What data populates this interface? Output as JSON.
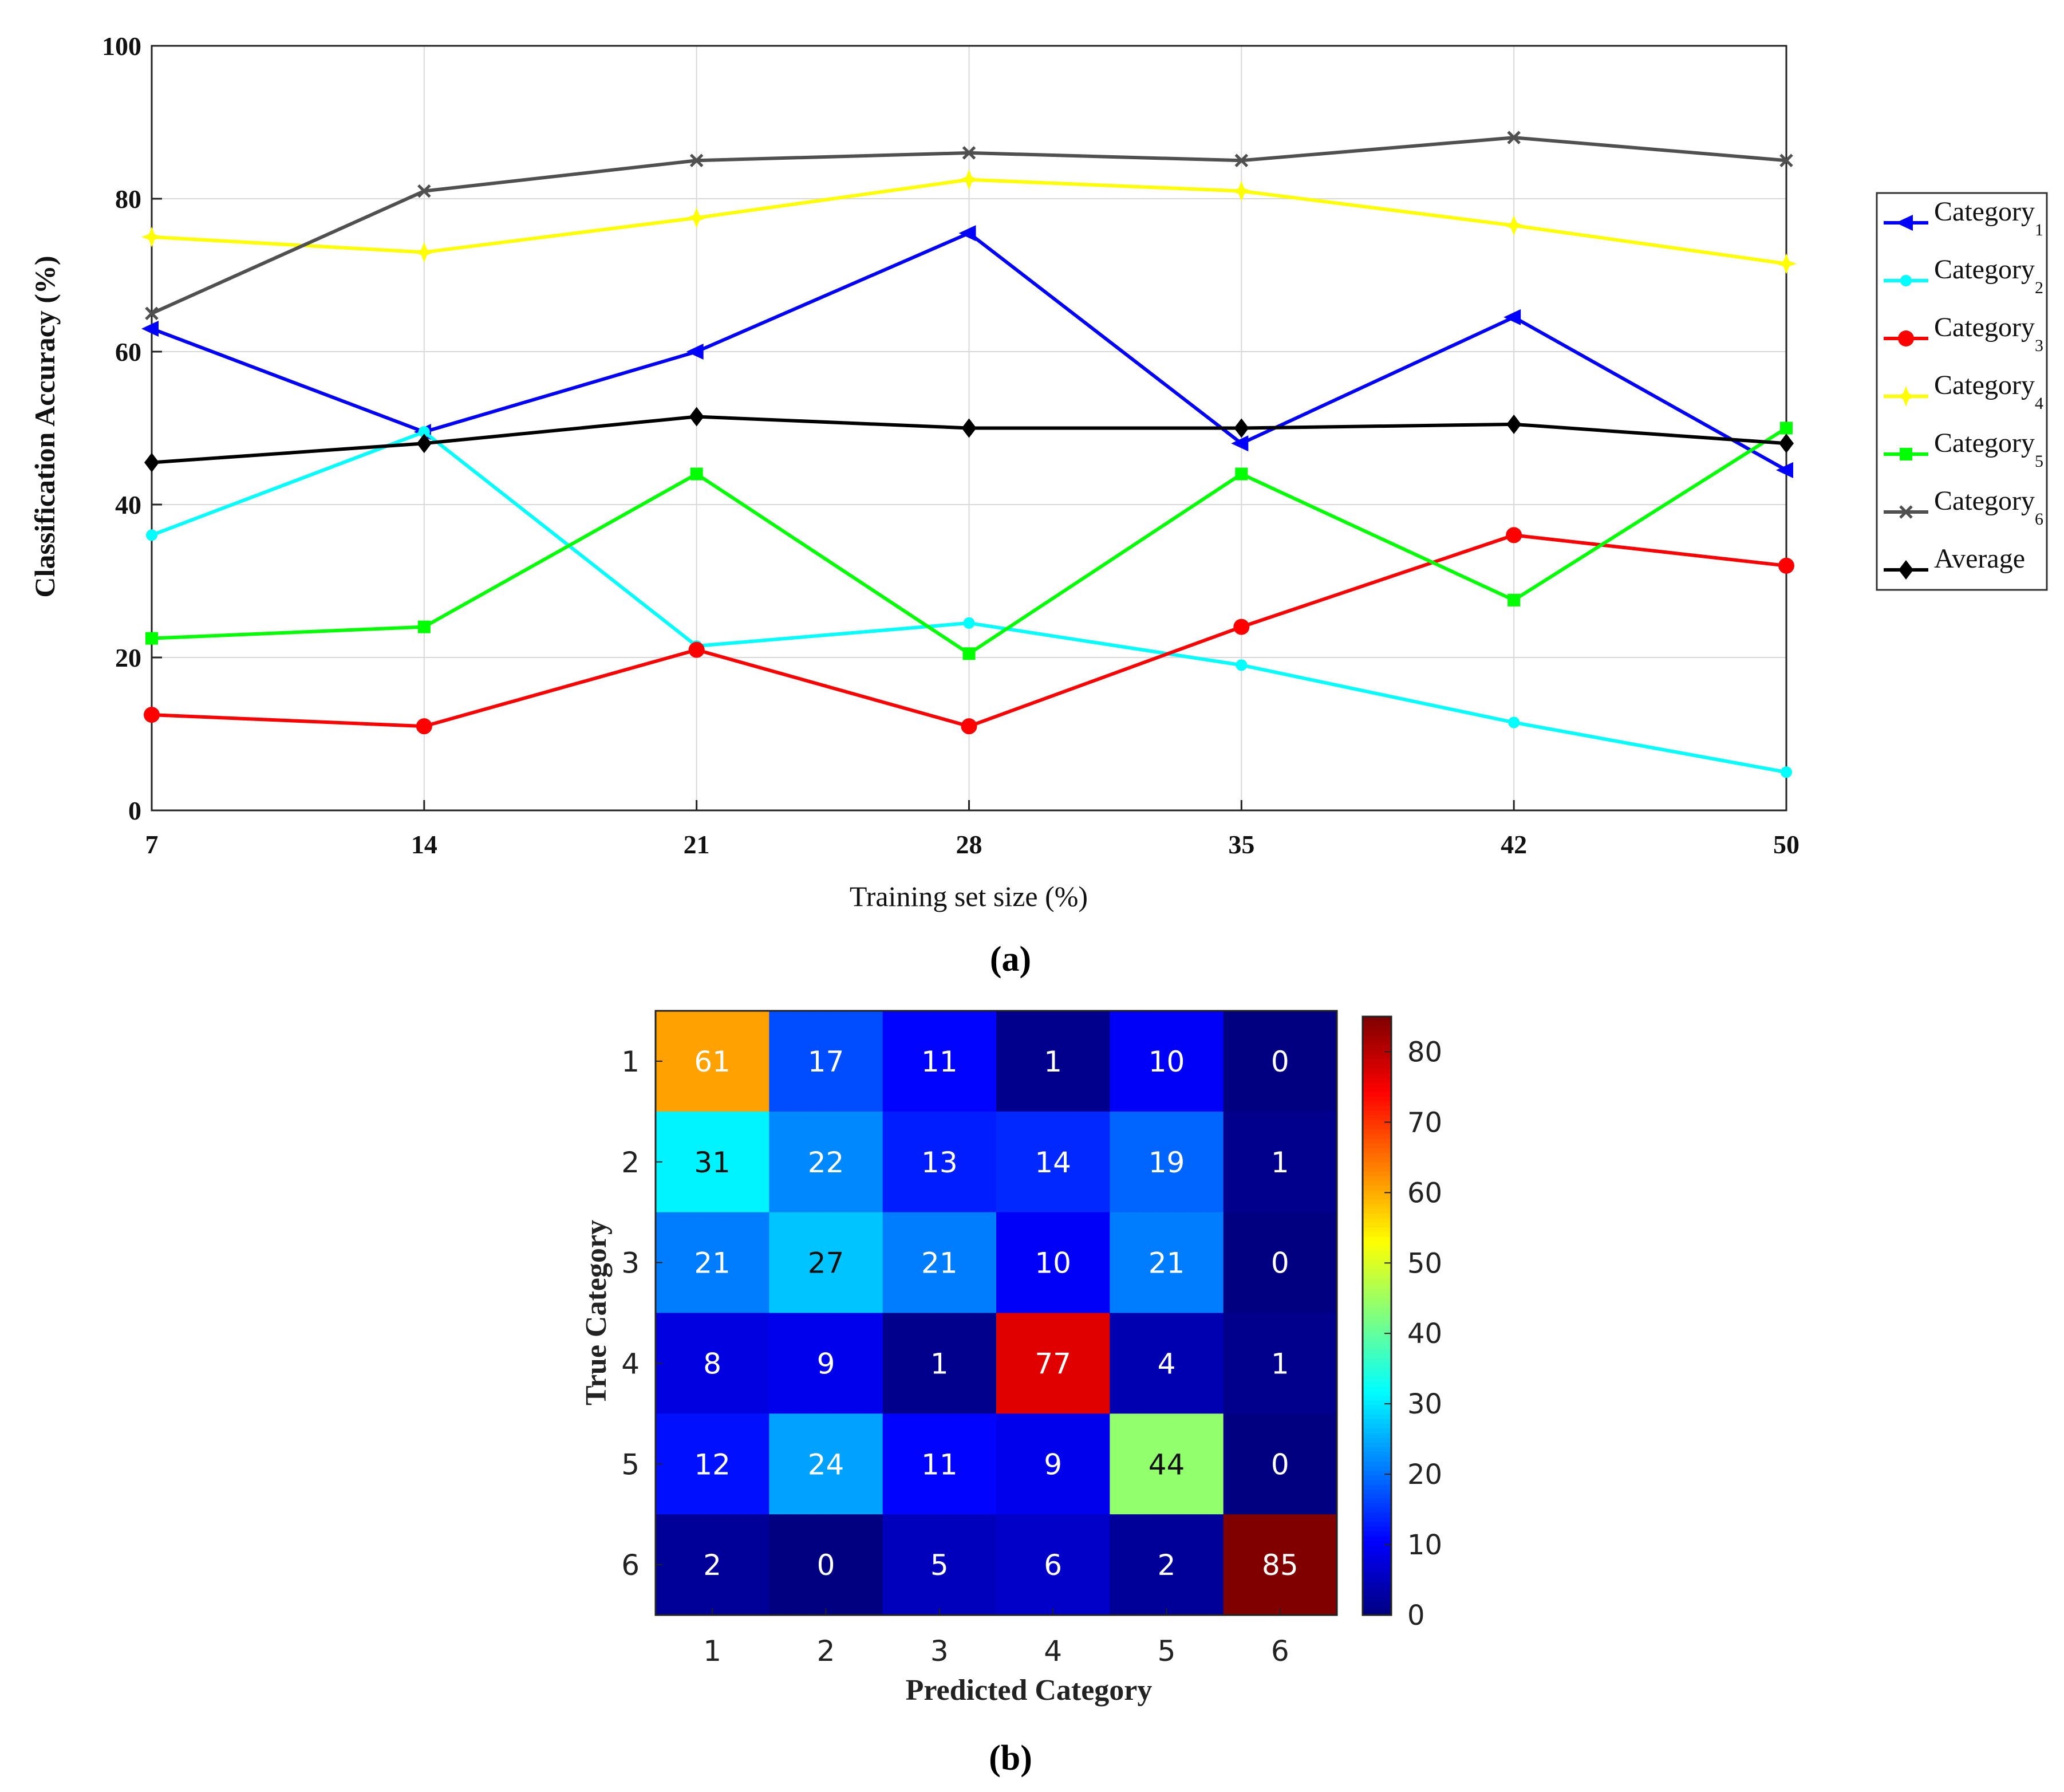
{
  "chart_data": [
    {
      "type": "line",
      "panel_label": "(a)",
      "xlabel": "Training set size (%)",
      "ylabel": "Classification Accuracy (%)",
      "x": [
        7,
        14,
        21,
        28,
        35,
        42,
        50
      ],
      "x_ticks": [
        "7",
        "14",
        "21",
        "28",
        "35",
        "42",
        "50"
      ],
      "ylim": [
        0,
        100
      ],
      "y_ticks": [
        "0",
        "20",
        "40",
        "60",
        "80",
        "100"
      ],
      "grid": true,
      "legend_position": "outside-right",
      "series": [
        {
          "name": "Category",
          "sub": "1",
          "color": "#0000ff",
          "marker": "triangle-left",
          "values": [
            63,
            49.5,
            60,
            75.5,
            48,
            64.5,
            44.5
          ]
        },
        {
          "name": "Category",
          "sub": "2",
          "color": "#00ffff",
          "marker": "dot",
          "values": [
            36,
            49.5,
            21.5,
            24.5,
            19,
            11.5,
            5
          ]
        },
        {
          "name": "Category",
          "sub": "3",
          "color": "#ff0000",
          "marker": "circle",
          "values": [
            12.5,
            11,
            21,
            11,
            24,
            36,
            32
          ]
        },
        {
          "name": "Category",
          "sub": "4",
          "color": "#ffff00",
          "marker": "star",
          "values": [
            75,
            73,
            77.5,
            82.5,
            81,
            76.5,
            71.5
          ]
        },
        {
          "name": "Category",
          "sub": "5",
          "color": "#00ff00",
          "marker": "square",
          "values": [
            22.5,
            24,
            44,
            20.5,
            44,
            27.5,
            50
          ]
        },
        {
          "name": "Category",
          "sub": "6",
          "color": "#505050",
          "marker": "x",
          "values": [
            65,
            81,
            85,
            86,
            85,
            88,
            85
          ]
        },
        {
          "name": "Average",
          "sub": "",
          "color": "#000000",
          "marker": "diamond",
          "values": [
            45.5,
            48,
            51.5,
            50,
            50,
            50.5,
            48
          ]
        }
      ]
    },
    {
      "type": "heatmap",
      "panel_label": "(b)",
      "xlabel": "Predicted Category",
      "ylabel": "True Category",
      "x_categories": [
        "1",
        "2",
        "3",
        "4",
        "5",
        "6"
      ],
      "y_categories": [
        "1",
        "2",
        "3",
        "4",
        "5",
        "6"
      ],
      "matrix": [
        [
          61,
          17,
          11,
          1,
          10,
          0
        ],
        [
          31,
          22,
          13,
          14,
          19,
          1
        ],
        [
          21,
          27,
          21,
          10,
          21,
          0
        ],
        [
          8,
          9,
          1,
          77,
          4,
          1
        ],
        [
          12,
          24,
          11,
          9,
          44,
          0
        ],
        [
          2,
          0,
          5,
          6,
          2,
          85
        ]
      ],
      "colorbar": {
        "colormap": "jet",
        "min": 0,
        "max": 85,
        "ticks": [
          "0",
          "10",
          "20",
          "30",
          "40",
          "50",
          "60",
          "70",
          "80"
        ]
      }
    }
  ]
}
